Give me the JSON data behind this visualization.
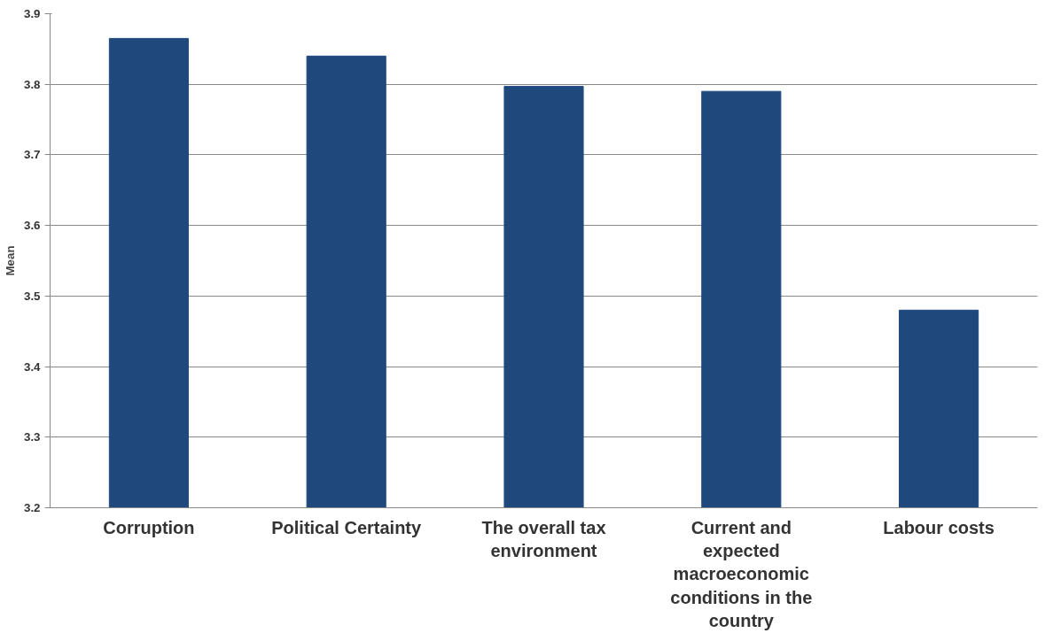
{
  "chart_data": {
    "type": "bar",
    "ylabel": "Mean",
    "categories": [
      "Corruption",
      "Political Certainty",
      "The overall tax environment",
      "Current and expected macroeconomic conditions in the country",
      "Labour costs"
    ],
    "values": [
      3.865,
      3.84,
      3.797,
      3.79,
      3.48
    ],
    "color": "#1f497d",
    "ylim": [
      3.2,
      3.9
    ],
    "yticks": [
      3.2,
      3.3,
      3.4,
      3.5,
      3.6,
      3.7,
      3.8,
      3.9
    ],
    "grid": "y"
  }
}
